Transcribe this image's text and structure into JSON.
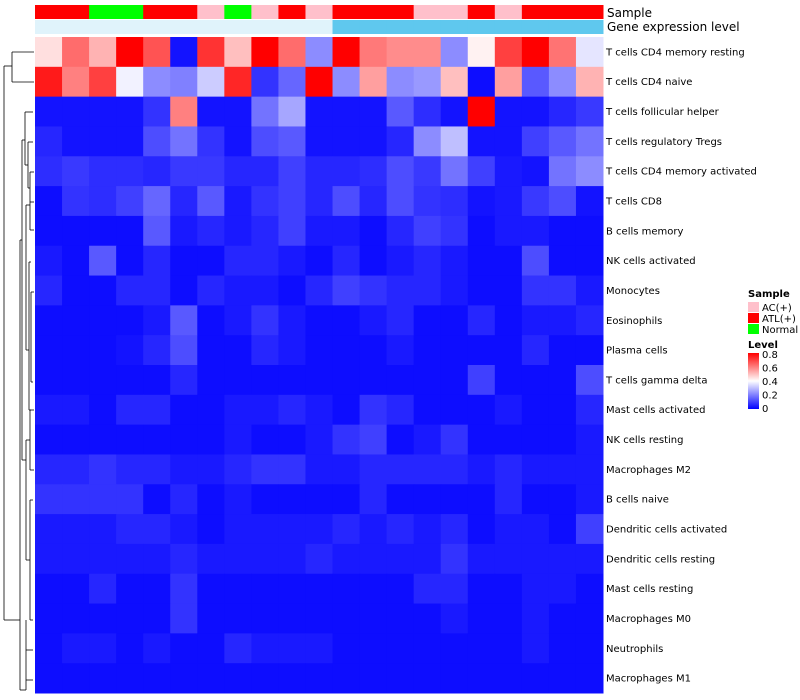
{
  "chart_data": {
    "type": "heatmap",
    "title": "",
    "annotation_labels": {
      "sample": "Sample",
      "gene_expression_level": "Gene expression level"
    },
    "rows": [
      "T cells CD4 memory resting",
      "T cells CD4 naive",
      "T cells follicular helper",
      "T cells regulatory  Tregs",
      "T cells CD4 memory activated",
      "T cells CD8",
      "B cells memory",
      "NK cells activated",
      "Monocytes",
      "Eosinophils",
      "Plasma cells",
      "T cells gamma delta",
      "Mast cells activated",
      "NK cells resting",
      "Macrophages M2",
      "B cells naive",
      "Dendritic cells activated",
      "Dendritic cells resting",
      "Mast cells resting",
      "Macrophages M0",
      "Neutrophils",
      "Macrophages M1"
    ],
    "sample_groups": [
      "ATL(+)",
      "ATL(+)",
      "Normal",
      "Normal",
      "ATL(+)",
      "ATL(+)",
      "AC(+)",
      "Normal",
      "AC(+)",
      "ATL(+)",
      "AC(+)",
      "ATL(+)",
      "ATL(+)",
      "ATL(+)",
      "AC(+)",
      "AC(+)",
      "ATL(+)",
      "AC(+)",
      "ATL(+)",
      "ATL(+)",
      "ATL(+)"
    ],
    "gene_expression_level": [
      "low",
      "low",
      "low",
      "low",
      "low",
      "low",
      "low",
      "low",
      "low",
      "low",
      "low",
      "high",
      "high",
      "high",
      "high",
      "high",
      "high",
      "high",
      "high",
      "high",
      "high"
    ],
    "values": [
      [
        0.45,
        0.63,
        0.52,
        0.8,
        0.67,
        0.03,
        0.72,
        0.5,
        0.8,
        0.63,
        0.22,
        0.8,
        0.61,
        0.58,
        0.58,
        0.22,
        0.42,
        0.7,
        0.8,
        0.62,
        0.36
      ],
      [
        0.76,
        0.6,
        0.7,
        0.38,
        0.22,
        0.2,
        0.32,
        0.74,
        0.08,
        0.16,
        0.8,
        0.22,
        0.55,
        0.22,
        0.24,
        0.5,
        0.02,
        0.55,
        0.14,
        0.22,
        0.52
      ],
      [
        0.03,
        0.03,
        0.03,
        0.03,
        0.08,
        0.6,
        0.03,
        0.03,
        0.18,
        0.26,
        0.03,
        0.03,
        0.03,
        0.14,
        0.07,
        0.03,
        0.8,
        0.03,
        0.03,
        0.06,
        0.09
      ],
      [
        0.06,
        0.03,
        0.03,
        0.03,
        0.12,
        0.18,
        0.08,
        0.03,
        0.12,
        0.14,
        0.03,
        0.03,
        0.03,
        0.06,
        0.22,
        0.3,
        0.03,
        0.03,
        0.1,
        0.14,
        0.18
      ],
      [
        0.07,
        0.09,
        0.07,
        0.07,
        0.06,
        0.09,
        0.09,
        0.06,
        0.06,
        0.1,
        0.06,
        0.06,
        0.07,
        0.12,
        0.09,
        0.18,
        0.1,
        0.04,
        0.03,
        0.18,
        0.22
      ],
      [
        0.02,
        0.08,
        0.07,
        0.1,
        0.16,
        0.06,
        0.14,
        0.04,
        0.08,
        0.1,
        0.06,
        0.12,
        0.06,
        0.12,
        0.08,
        0.07,
        0.03,
        0.04,
        0.09,
        0.12,
        0.03
      ],
      [
        0.02,
        0.02,
        0.02,
        0.02,
        0.14,
        0.04,
        0.06,
        0.04,
        0.06,
        0.1,
        0.04,
        0.04,
        0.02,
        0.06,
        0.1,
        0.08,
        0.02,
        0.04,
        0.04,
        0.02,
        0.02
      ],
      [
        0.04,
        0.02,
        0.14,
        0.02,
        0.06,
        0.02,
        0.02,
        0.06,
        0.06,
        0.04,
        0.02,
        0.06,
        0.02,
        0.04,
        0.06,
        0.04,
        0.02,
        0.02,
        0.12,
        0.02,
        0.02
      ],
      [
        0.06,
        0.02,
        0.02,
        0.06,
        0.06,
        0.02,
        0.06,
        0.04,
        0.04,
        0.02,
        0.06,
        0.1,
        0.08,
        0.06,
        0.06,
        0.04,
        0.02,
        0.02,
        0.08,
        0.08,
        0.04
      ],
      [
        0.02,
        0.02,
        0.02,
        0.02,
        0.04,
        0.14,
        0.02,
        0.04,
        0.08,
        0.04,
        0.02,
        0.02,
        0.04,
        0.06,
        0.02,
        0.02,
        0.06,
        0.02,
        0.04,
        0.04,
        0.06
      ],
      [
        0.02,
        0.02,
        0.02,
        0.03,
        0.06,
        0.12,
        0.02,
        0.02,
        0.06,
        0.04,
        0.02,
        0.02,
        0.02,
        0.04,
        0.02,
        0.02,
        0.02,
        0.02,
        0.06,
        0.02,
        0.02
      ],
      [
        0.02,
        0.02,
        0.02,
        0.02,
        0.02,
        0.06,
        0.02,
        0.02,
        0.02,
        0.02,
        0.02,
        0.02,
        0.02,
        0.02,
        0.02,
        0.02,
        0.1,
        0.02,
        0.02,
        0.02,
        0.12
      ],
      [
        0.04,
        0.04,
        0.02,
        0.06,
        0.06,
        0.02,
        0.02,
        0.04,
        0.04,
        0.06,
        0.04,
        0.02,
        0.08,
        0.06,
        0.02,
        0.02,
        0.02,
        0.04,
        0.02,
        0.02,
        0.06
      ],
      [
        0.02,
        0.02,
        0.02,
        0.02,
        0.02,
        0.02,
        0.02,
        0.04,
        0.02,
        0.02,
        0.04,
        0.08,
        0.1,
        0.02,
        0.04,
        0.08,
        0.02,
        0.02,
        0.02,
        0.02,
        0.04
      ],
      [
        0.06,
        0.06,
        0.08,
        0.06,
        0.06,
        0.04,
        0.04,
        0.06,
        0.08,
        0.08,
        0.04,
        0.04,
        0.06,
        0.06,
        0.06,
        0.06,
        0.04,
        0.06,
        0.04,
        0.04,
        0.04
      ],
      [
        0.08,
        0.08,
        0.08,
        0.08,
        0.02,
        0.06,
        0.02,
        0.04,
        0.02,
        0.02,
        0.02,
        0.02,
        0.06,
        0.02,
        0.02,
        0.02,
        0.02,
        0.06,
        0.02,
        0.02,
        0.04
      ],
      [
        0.04,
        0.04,
        0.04,
        0.06,
        0.06,
        0.04,
        0.02,
        0.04,
        0.04,
        0.04,
        0.04,
        0.06,
        0.04,
        0.06,
        0.04,
        0.06,
        0.02,
        0.04,
        0.04,
        0.02,
        0.1
      ],
      [
        0.04,
        0.04,
        0.04,
        0.04,
        0.04,
        0.06,
        0.04,
        0.04,
        0.04,
        0.04,
        0.06,
        0.04,
        0.04,
        0.04,
        0.04,
        0.08,
        0.04,
        0.04,
        0.04,
        0.04,
        0.04
      ],
      [
        0.02,
        0.02,
        0.06,
        0.02,
        0.02,
        0.08,
        0.02,
        0.02,
        0.02,
        0.02,
        0.02,
        0.02,
        0.02,
        0.02,
        0.06,
        0.06,
        0.02,
        0.02,
        0.04,
        0.04,
        0.02
      ],
      [
        0.02,
        0.02,
        0.02,
        0.02,
        0.02,
        0.08,
        0.02,
        0.02,
        0.02,
        0.02,
        0.02,
        0.02,
        0.02,
        0.02,
        0.02,
        0.04,
        0.02,
        0.02,
        0.04,
        0.02,
        0.02
      ],
      [
        0.02,
        0.04,
        0.04,
        0.02,
        0.04,
        0.02,
        0.02,
        0.06,
        0.04,
        0.04,
        0.04,
        0.02,
        0.02,
        0.02,
        0.02,
        0.02,
        0.02,
        0.02,
        0.04,
        0.02,
        0.02
      ],
      [
        0.02,
        0.02,
        0.02,
        0.02,
        0.02,
        0.02,
        0.02,
        0.02,
        0.02,
        0.02,
        0.02,
        0.02,
        0.02,
        0.02,
        0.02,
        0.02,
        0.02,
        0.02,
        0.02,
        0.02,
        0.02
      ]
    ],
    "legend_sample": {
      "title": "Sample",
      "items": [
        {
          "label": "AC(+)",
          "color": "#ffc0cb"
        },
        {
          "label": "ATL(+)",
          "color": "#ff0000"
        },
        {
          "label": "Normal",
          "color": "#00ff00"
        }
      ]
    },
    "legend_level": {
      "title": "Level",
      "ticks": [
        "0.8",
        "0.6",
        "0.4",
        "0.2",
        "0"
      ],
      "range": [
        0,
        0.8
      ],
      "colors": {
        "low": "#0000ff",
        "mid": "#ffffff",
        "high": "#ff0000"
      }
    },
    "gene_expression_colors": {
      "low": "#e0f3fb",
      "high": "#5fc8ee"
    },
    "dendrogram": "row clustering, left side"
  }
}
